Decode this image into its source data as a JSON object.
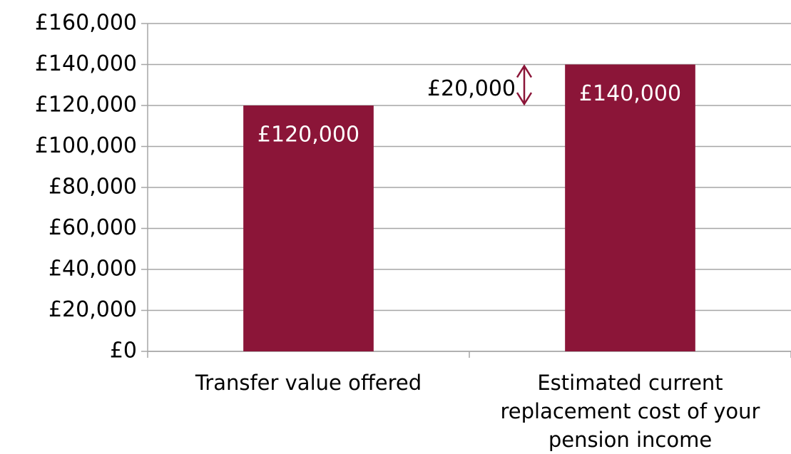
{
  "chart_data": {
    "type": "bar",
    "categories": [
      "Transfer value offered",
      "Estimated current replacement cost of your pension income"
    ],
    "values": [
      120000,
      140000
    ],
    "value_labels": [
      "£120,000",
      "£140,000"
    ],
    "color": "#8b1538",
    "ylim": [
      0,
      160000
    ],
    "yticks": [
      {
        "value": 0,
        "label": "£0"
      },
      {
        "value": 20000,
        "label": "£20,000"
      },
      {
        "value": 40000,
        "label": "£40,000"
      },
      {
        "value": 60000,
        "label": "£60,000"
      },
      {
        "value": 80000,
        "label": "£80,000"
      },
      {
        "value": 100000,
        "label": "£100,000"
      },
      {
        "value": 120000,
        "label": "£120,000"
      },
      {
        "value": 140000,
        "label": "£140,000"
      },
      {
        "value": 160000,
        "label": "£160,000"
      }
    ],
    "grid": true,
    "annotation": "£20,000"
  }
}
